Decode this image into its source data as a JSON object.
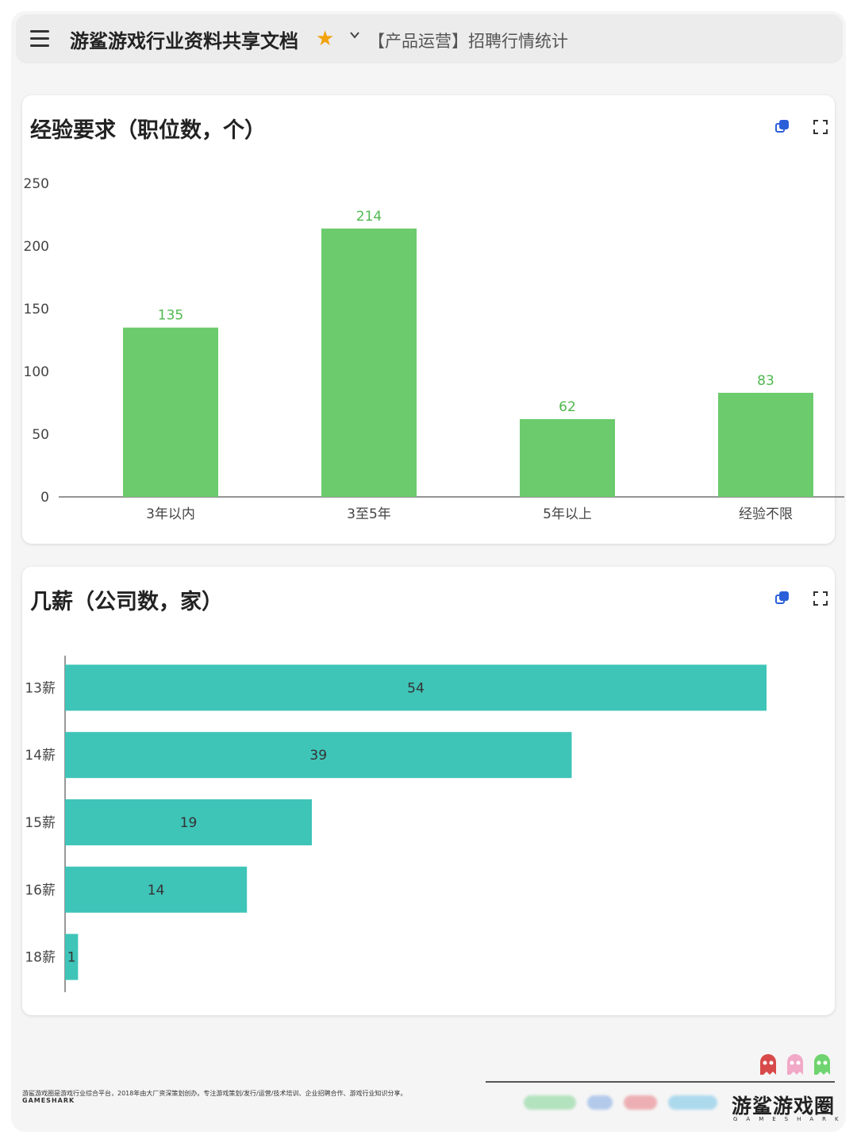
{
  "header": {
    "doc_title": "游鲨游戏行业资料共享文档",
    "sheet_name": "【产品运营】招聘行情统计"
  },
  "charts": {
    "experience_title": "经验要求（职位数，个）",
    "salary_title": "几薪（公司数，家）"
  },
  "chart_data": [
    {
      "type": "bar",
      "orientation": "vertical",
      "title": "经验要求（职位数，个）",
      "categories": [
        "3年以内",
        "3至5年",
        "5年以上",
        "经验不限"
      ],
      "values": [
        135,
        214,
        62,
        83
      ],
      "ylim": [
        0,
        250
      ],
      "yticks": [
        0,
        50,
        100,
        150,
        200,
        250
      ],
      "grid": false,
      "color": "#6ccb6c",
      "label_color": "#4fb84f"
    },
    {
      "type": "bar",
      "orientation": "horizontal",
      "title": "几薪（公司数，家）",
      "categories": [
        "13薪",
        "14薪",
        "15薪",
        "16薪",
        "18薪"
      ],
      "values": [
        54,
        39,
        19,
        14,
        1
      ],
      "xlim": [
        0,
        54
      ],
      "grid": false,
      "color": "#3fc4b8",
      "label_color": "#333333"
    }
  ],
  "footer": {
    "description": "游鲨游戏圈是游戏行业综合平台，2018年由大厂资深策划创办。专注游戏策划/发行/运营/技术培训、企业招聘合作、游戏行业知识分享。",
    "brand_small": "GAMESHARK",
    "brand_logo": "游鲨游戏圈",
    "brand_sub": "GAMESHARK"
  },
  "icons": {
    "menu": "menu-icon",
    "star": "star-icon",
    "chevron": "chevron-down-icon",
    "copy": "copy-icon",
    "expand": "expand-icon"
  }
}
